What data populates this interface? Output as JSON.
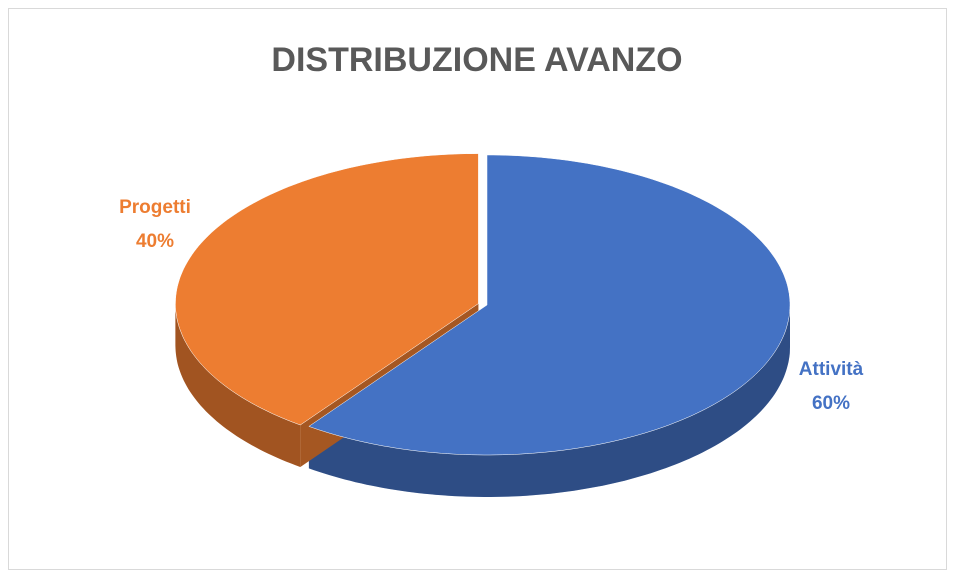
{
  "chart_data": {
    "type": "pie3d",
    "title": "DISTRIBUZIONE AVANZO",
    "categories": [
      "Attività",
      "Progetti"
    ],
    "values": [
      60,
      40
    ],
    "value_labels": [
      "60%",
      "40%"
    ],
    "colors": [
      "#4472c4",
      "#ed7d31"
    ]
  }
}
